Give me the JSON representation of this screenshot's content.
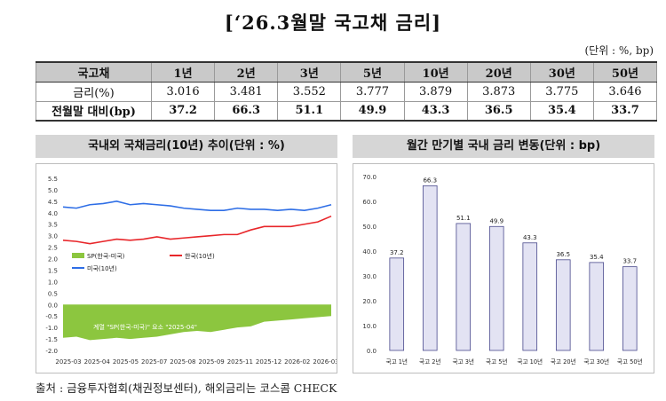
{
  "title": "[‘26.3월말 국고채 금리]",
  "unit_note": "(단위 : %, bp)",
  "table": {
    "header_label": "국고채",
    "columns": [
      "1년",
      "2년",
      "3년",
      "5년",
      "10년",
      "20년",
      "30년",
      "50년"
    ],
    "rows": [
      {
        "label": "금리(%)",
        "values": [
          "3.016",
          "3.481",
          "3.552",
          "3.777",
          "3.879",
          "3.873",
          "3.775",
          "3.646"
        ]
      },
      {
        "label": "전월말 대비(bp)",
        "values": [
          "37.2",
          "66.3",
          "51.1",
          "49.9",
          "43.3",
          "36.5",
          "35.4",
          "33.7"
        ]
      }
    ]
  },
  "left_panel_title": "국내외 국채금리(10년) 추이(단위 : %)",
  "right_panel_title": "월간 만기별 국내 금리 변동(단위 : bp)",
  "colors": {
    "korea": "#e8262a",
    "us": "#2e6ee6",
    "spread": "#8cc63f",
    "bar_fill": "#e3e3f3",
    "bar_stroke": "#4a4a8c"
  },
  "chart_data": [
    {
      "type": "line",
      "xlabel": "",
      "ylabel": "",
      "x_ticks": [
        "2025-03",
        "2025-04",
        "2025-05",
        "2025-07",
        "2025-08",
        "2025-09",
        "2025-11",
        "2025-12",
        "2026-02",
        "2026-03"
      ],
      "y_ticks": [
        "5.5",
        "5.0",
        "4.5",
        "4.0",
        "3.5",
        "3.0",
        "2.5",
        "2.0",
        "1.5",
        "1.0",
        "0.5",
        "0.0",
        "-0.5",
        "-1.0",
        "-1.5",
        "-2.0"
      ],
      "ylim": [
        -2.0,
        5.5
      ],
      "grid": false,
      "legend_placement": "middle",
      "series": [
        {
          "name": "SP(한국-미국)",
          "kind": "area",
          "values": [
            -1.45,
            -1.4,
            -1.55,
            -1.5,
            -1.45,
            -1.5,
            -1.45,
            -1.4,
            -1.3,
            -1.2,
            -1.15,
            -1.2,
            -1.1,
            -1.0,
            -0.95,
            -0.75,
            -0.7,
            -0.65,
            -0.6,
            -0.55,
            -0.5
          ]
        },
        {
          "name": "한국(10년)",
          "kind": "line",
          "values": [
            2.8,
            2.75,
            2.65,
            2.75,
            2.85,
            2.8,
            2.85,
            2.95,
            2.85,
            2.9,
            2.95,
            3.0,
            3.05,
            3.05,
            3.25,
            3.4,
            3.4,
            3.4,
            3.5,
            3.6,
            3.85
          ]
        },
        {
          "name": "미국(10년)",
          "kind": "line",
          "values": [
            4.25,
            4.2,
            4.35,
            4.4,
            4.5,
            4.35,
            4.4,
            4.35,
            4.3,
            4.2,
            4.15,
            4.1,
            4.1,
            4.2,
            4.15,
            4.15,
            4.1,
            4.15,
            4.1,
            4.2,
            4.35
          ]
        }
      ],
      "annotation": "계열 \"SP(한국-미국)\" 요소 \"2025-04\""
    },
    {
      "type": "bar",
      "categories": [
        "국고 1년",
        "국고 2년",
        "국고 3년",
        "국고 5년",
        "국고 10년",
        "국고 20년",
        "국고 30년",
        "국고 50년"
      ],
      "values": [
        37.2,
        66.3,
        51.1,
        49.9,
        43.3,
        36.5,
        35.4,
        33.7
      ],
      "data_labels": [
        "37.2",
        "66.3",
        "51.1",
        "49.9",
        "43.3",
        "36.5",
        "35.4",
        "33.7"
      ],
      "y_ticks": [
        "70.0",
        "60.0",
        "50.0",
        "40.0",
        "30.0",
        "20.0",
        "10.0",
        "0.0"
      ],
      "ylim": [
        0,
        70
      ],
      "xlabel": "",
      "ylabel": "",
      "grid": false
    }
  ],
  "source": "출처 : 금융투자협회(채권정보센터), 해외금리는 코스콤 CHECK"
}
